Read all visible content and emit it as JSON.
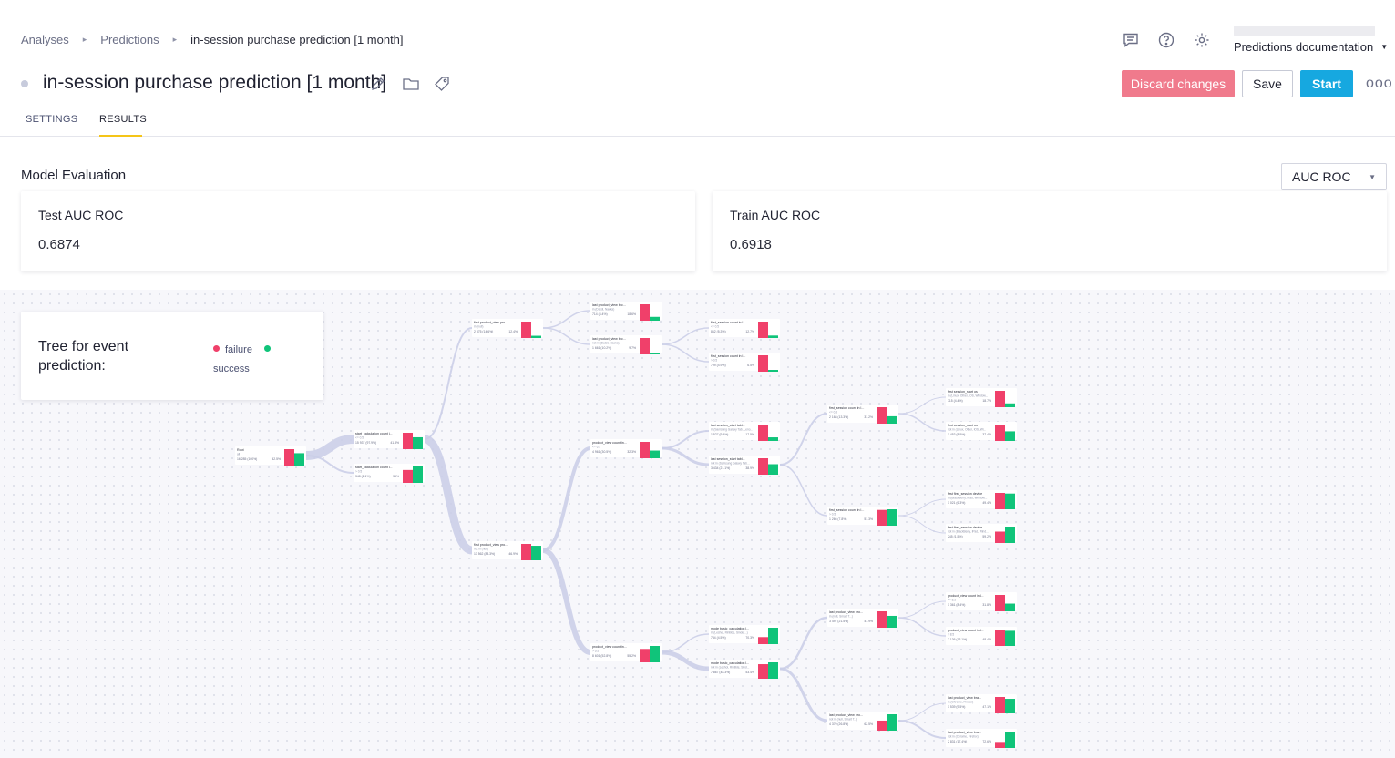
{
  "breadcrumb": [
    "Analyses",
    "Predictions",
    "in-session purchase prediction [1 month]"
  ],
  "header": {
    "docs_label": "Predictions documentation",
    "icons": [
      "comment-icon",
      "help-icon",
      "gear-icon"
    ]
  },
  "title": "in-session purchase prediction [1 month]",
  "actions": {
    "discard": "Discard changes",
    "save": "Save",
    "start": "Start",
    "more": "ooo"
  },
  "tabs": [
    "SETTINGS",
    "RESULTS"
  ],
  "active_tab": "RESULTS",
  "evaluation": {
    "title": "Model Evaluation",
    "metric_selected": "AUC ROC",
    "cards": [
      {
        "label": "Test AUC ROC",
        "value": "0.6874"
      },
      {
        "label": "Train AUC ROC",
        "value": "0.6918"
      }
    ]
  },
  "tree": {
    "title": "Tree for event prediction:",
    "legend": {
      "failure": "failure",
      "success": "success"
    },
    "colors": {
      "failure": "#f0406a",
      "success": "#10c47a",
      "link": "#c9cde6"
    },
    "nodes": [
      {
        "id": "root",
        "title": "Root",
        "sub": "all",
        "count": "16 285 (100%)",
        "pct": "42.5%",
        "f": 0.57,
        "s": 0.43
      },
      {
        "id": "n1a",
        "title": "start_calculation count i...",
        "sub": "<= 0.5",
        "count": "15 937 (97.9%)",
        "pct": "41.8%",
        "f": 0.58,
        "s": 0.42
      },
      {
        "id": "n1b",
        "title": "start_calculation count i...",
        "sub": "> 0.5",
        "count": "348 (2.1%)",
        "pct": "56%",
        "f": 0.44,
        "s": 0.56
      },
      {
        "id": "n2a",
        "title": "first product_view pro...",
        "sub": "in (null)",
        "count": "2 375 (14.6%)",
        "pct": "12.4%",
        "f": 0.88,
        "s": 0.12
      },
      {
        "id": "n2b",
        "title": "first product_view pro...",
        "sub": "not in (null)",
        "count": "13 562 (83.3%)",
        "pct": "46.9%",
        "f": 0.53,
        "s": 0.47
      },
      {
        "id": "n3a",
        "title": "last product_view brc...",
        "sub": "in (Dalsil, Naeka)",
        "count": "714 (4.4%)",
        "pct": "18.6%",
        "f": 0.81,
        "s": 0.19
      },
      {
        "id": "n3b",
        "title": "last product_view brc...",
        "sub": "not in (Dalsil, Naeka)",
        "count": "1 661 (10.2%)",
        "pct": "9.7%",
        "f": 0.9,
        "s": 0.1
      },
      {
        "id": "n3c",
        "title": "product_view count in...",
        "sub": "<= 6.5",
        "count": "4 961 (30.5%)",
        "pct": "32.3%",
        "f": 0.68,
        "s": 0.32
      },
      {
        "id": "n3d",
        "title": "product_view count in...",
        "sub": "> 6.5",
        "count": "8 601 (52.8%)",
        "pct": "55.2%",
        "f": 0.45,
        "s": 0.55
      },
      {
        "id": "n4a",
        "title": "first_session count in l...",
        "sub": "<= 0.5",
        "count": "862 (5.3%)",
        "pct": "12.7%",
        "f": 0.87,
        "s": 0.13
      },
      {
        "id": "n4b",
        "title": "first_session count in l...",
        "sub": "> 0.5",
        "count": "799 (4.9%)",
        "pct": "6.5%",
        "f": 0.93,
        "s": 0.07
      },
      {
        "id": "n4c",
        "title": "last session_start tabl...",
        "sub": "in (Samsung Galaxy Tab, Leno...",
        "count": "1 527 (9.4%)",
        "pct": "17.5%",
        "f": 0.82,
        "s": 0.18
      },
      {
        "id": "n4d",
        "title": "last session_start tabl...",
        "sub": "not in (Samsung Galaxy Tab...",
        "count": "3 434 (21.1%)",
        "pct": "38.9%",
        "f": 0.61,
        "s": 0.39
      },
      {
        "id": "n4e",
        "title": "mode basic_calculation l...",
        "sub": "in (Leshol, Rintilde, Sinder...)",
        "count": "734 (4.5%)",
        "pct": "70.3%",
        "f": 0.3,
        "s": 0.7
      },
      {
        "id": "n4f",
        "title": "mode basic_calculation l...",
        "sub": "not in (Leshol, Rintilde, Sind...",
        "count": "7 867 (48.3%)",
        "pct": "53.4%",
        "f": 0.47,
        "s": 0.53
      },
      {
        "id": "n5a",
        "title": "first_session count in l...",
        "sub": "<= 0.5",
        "count": "2 168 (13.3%)",
        "pct": "31.2%",
        "f": 0.69,
        "s": 0.31
      },
      {
        "id": "n5b",
        "title": "first_session count in l...",
        "sub": "> 0.5",
        "count": "1 266 (7.8%)",
        "pct": "51.3%",
        "f": 0.49,
        "s": 0.51
      },
      {
        "id": "n5c",
        "title": "last product_view pro...",
        "sub": "in (null, Smart T...)",
        "count": "3 497 (21.5%)",
        "pct": "41.9%",
        "f": 0.58,
        "s": 0.42
      },
      {
        "id": "n5d",
        "title": "last product_view pro...",
        "sub": "not in (null, Smart T...)",
        "count": "4 370 (26.8%)",
        "pct": "62.5%",
        "f": 0.38,
        "s": 0.62
      },
      {
        "id": "n6a",
        "title": "first session_start os",
        "sub": "in (Linux, Other, iOS, Window...",
        "count": "715 (4.4%)",
        "pct": "18.7%",
        "f": 0.81,
        "s": 0.19
      },
      {
        "id": "n6b",
        "title": "first session_start os",
        "sub": "not in (Linux, Other, iOS, Wi...",
        "count": "1 453 (8.9%)",
        "pct": "37.4%",
        "f": 0.63,
        "s": 0.37
      },
      {
        "id": "n6c",
        "title": "first first_session device",
        "sub": "in (BlackBerry, iPad, Window...",
        "count": "1 021 (6.3%)",
        "pct": "49.4%",
        "f": 0.51,
        "s": 0.49
      },
      {
        "id": "n6d",
        "title": "first first_session device",
        "sub": "not in (BlackBerry, iPad, Wind...",
        "count": "245 (1.5%)",
        "pct": "59.2%",
        "f": 0.41,
        "s": 0.59
      },
      {
        "id": "n6e",
        "title": "product_view count in l...",
        "sub": "<= 8.5",
        "count": "1 361 (8.4%)",
        "pct": "31.8%",
        "f": 0.68,
        "s": 0.32
      },
      {
        "id": "n6f",
        "title": "product_view count in l...",
        "sub": "> 8.5",
        "count": "2 136 (13.1%)",
        "pct": "48.4%",
        "f": 0.52,
        "s": 0.48
      },
      {
        "id": "n6g",
        "title": "last product_view bra...",
        "sub": "in (Chrome, Firefox)",
        "count": "1 539 (9.5%)",
        "pct": "47.1%",
        "f": 0.53,
        "s": 0.47
      },
      {
        "id": "n6h",
        "title": "last product_view bra...",
        "sub": "not in (Chrome, Firefox)",
        "count": "2 831 (17.4%)",
        "pct": "72.6%",
        "f": 0.27,
        "s": 0.73
      }
    ]
  }
}
